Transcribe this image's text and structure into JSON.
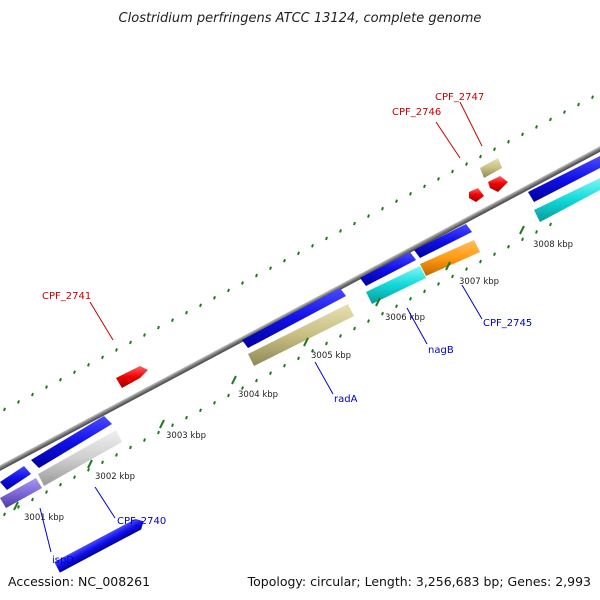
{
  "title": "Clostridium perfringens ATCC 13124, complete genome",
  "footer": {
    "accession": "Accession: NC_008261",
    "summary": "Topology: circular; Length: 3,256,683 bp; Genes: 2,993"
  },
  "colors": {
    "backbone": "#8a8a8a",
    "dot_track": "#1f7a1f",
    "red_label": "#cc0000",
    "blue_label": "#0000cc"
  },
  "ticks": [
    {
      "label": "3001 kbp"
    },
    {
      "label": "3002 kbp"
    },
    {
      "label": "3003 kbp"
    },
    {
      "label": "3004 kbp"
    },
    {
      "label": "3005 kbp"
    },
    {
      "label": "3006 kbp"
    },
    {
      "label": "3007 kbp"
    },
    {
      "label": "3008 kbp"
    }
  ],
  "gene_labels": [
    {
      "name": "CPF_2741",
      "color": "red"
    },
    {
      "name": "CPF_2746",
      "color": "red"
    },
    {
      "name": "CPF_2747",
      "color": "red"
    },
    {
      "name": "ispD",
      "color": "blue"
    },
    {
      "name": "CPF_2740",
      "color": "blue"
    },
    {
      "name": "radA",
      "color": "blue"
    },
    {
      "name": "nagB",
      "color": "blue"
    },
    {
      "name": "CPF_2745",
      "color": "blue"
    }
  ]
}
